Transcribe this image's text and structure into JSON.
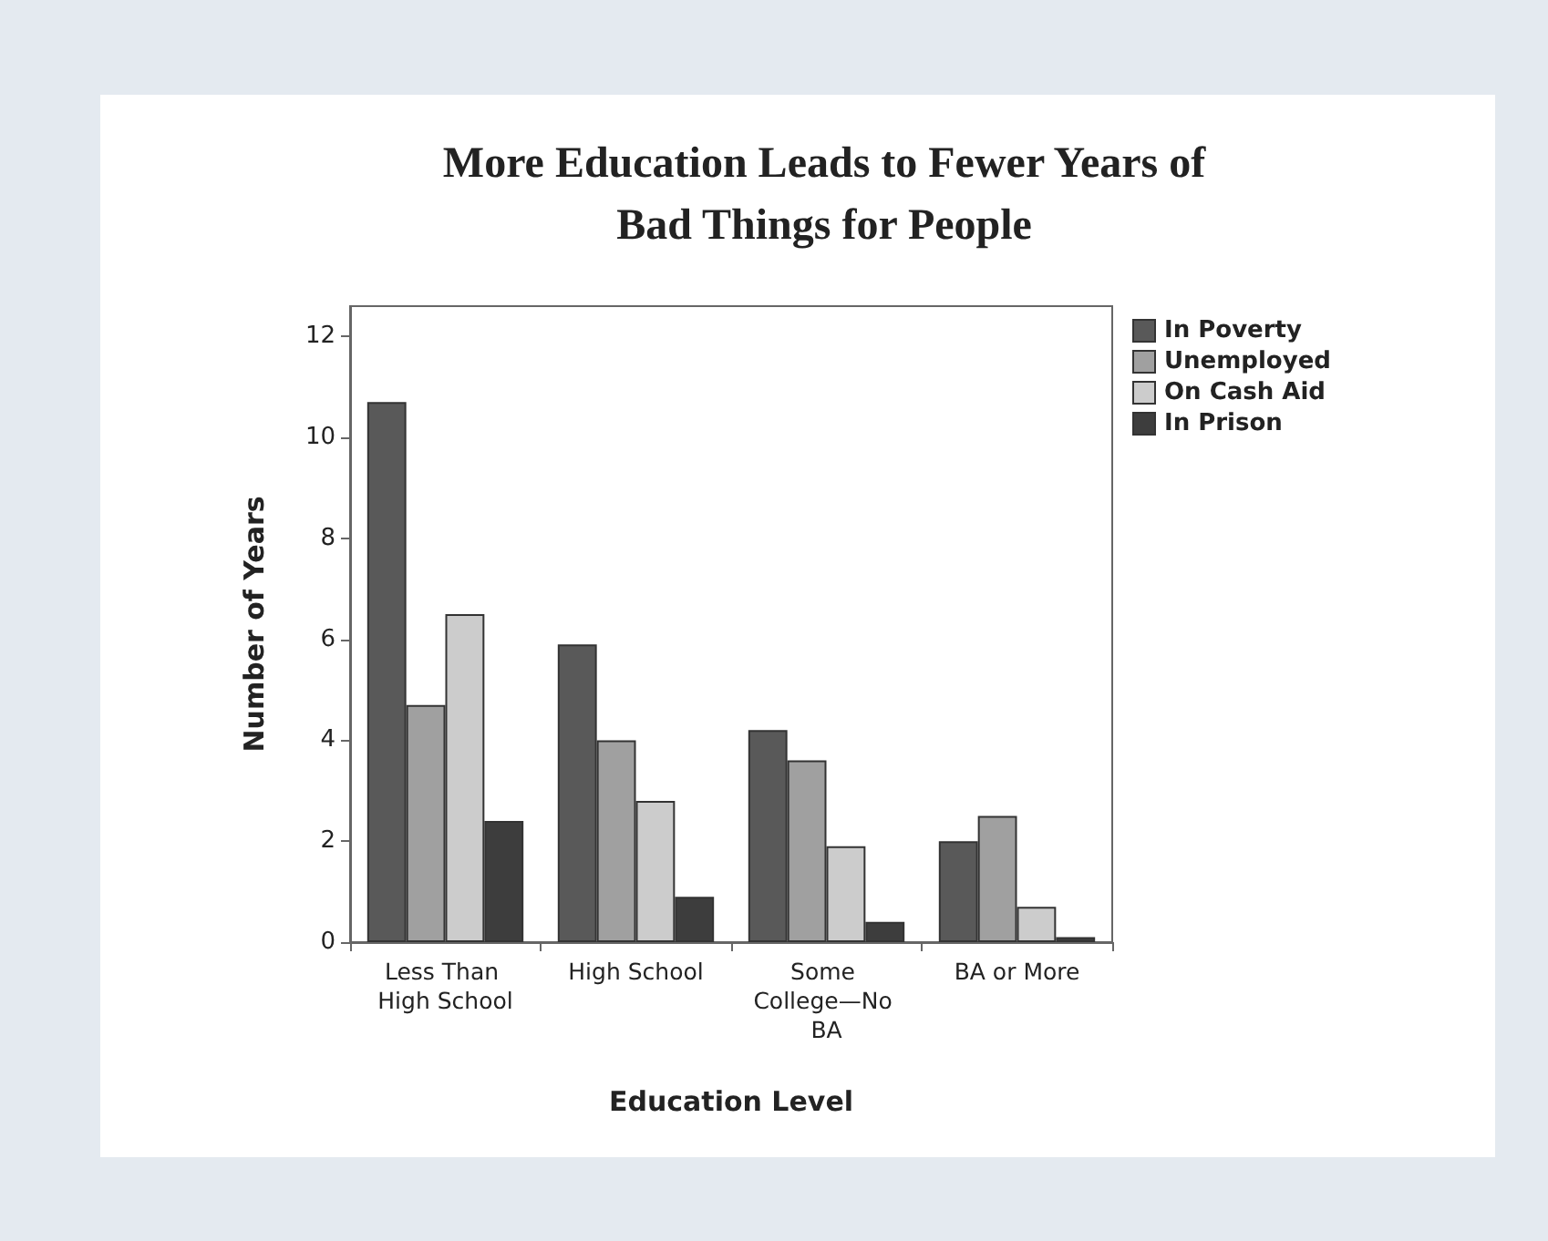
{
  "chart_data": {
    "type": "bar",
    "title": "More Education Leads to Fewer Years of\nBad Things for People",
    "xlabel": "Education Level",
    "ylabel": "Number of Years",
    "categories": [
      "Less Than High School",
      "High School",
      "Some College—No BA",
      "BA or More"
    ],
    "series": [
      {
        "name": "In Poverty",
        "color": "#595959",
        "values": [
          10.7,
          5.9,
          4.2,
          2.0
        ]
      },
      {
        "name": "Unemployed",
        "color": "#a0a0a0",
        "values": [
          4.7,
          4.0,
          3.6,
          2.5
        ]
      },
      {
        "name": "On Cash Aid",
        "color": "#cccccc",
        "values": [
          6.5,
          2.8,
          1.9,
          0.7
        ]
      },
      {
        "name": "In Prison",
        "color": "#3d3d3d",
        "values": [
          2.4,
          0.9,
          0.4,
          0.1
        ]
      }
    ],
    "ylim": [
      0,
      12.6
    ],
    "yticks": [
      0,
      2,
      4,
      6,
      8,
      10,
      12
    ],
    "grid": false,
    "legend": "top right"
  }
}
